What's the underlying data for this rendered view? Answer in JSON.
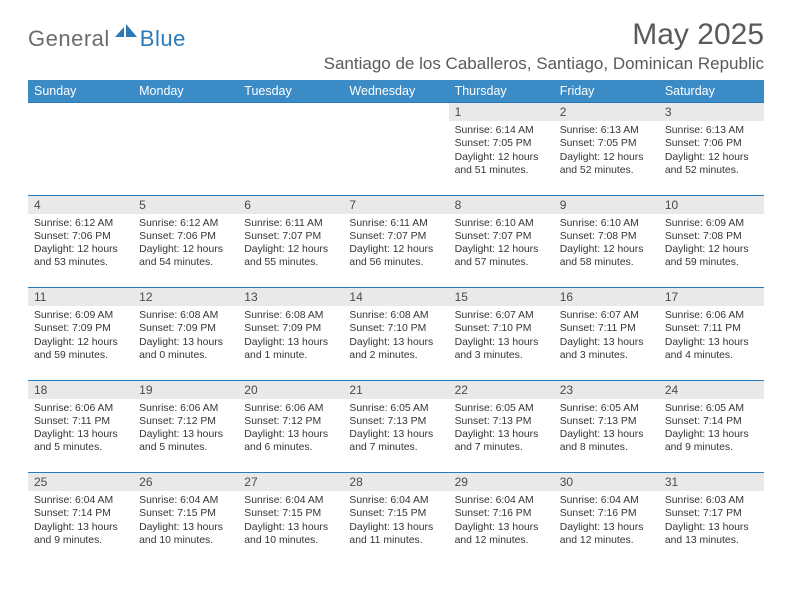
{
  "brand": {
    "part1": "General",
    "part2": "Blue"
  },
  "title": "May 2025",
  "location": "Santiago de los Caballeros, Santiago, Dominican Republic",
  "colors": {
    "header_bg": "#3b8bc7",
    "header_border": "#2a7ab9",
    "daynum_bg": "#e9e9e9",
    "text": "#353535",
    "title_text": "#5a5a5a"
  },
  "weekdays": [
    "Sunday",
    "Monday",
    "Tuesday",
    "Wednesday",
    "Thursday",
    "Friday",
    "Saturday"
  ],
  "weeks": [
    {
      "nums": [
        "",
        "",
        "",
        "",
        "1",
        "2",
        "3"
      ],
      "cells": [
        null,
        null,
        null,
        null,
        {
          "sunrise": "Sunrise: 6:14 AM",
          "sunset": "Sunset: 7:05 PM",
          "day1": "Daylight: 12 hours",
          "day2": "and 51 minutes."
        },
        {
          "sunrise": "Sunrise: 6:13 AM",
          "sunset": "Sunset: 7:05 PM",
          "day1": "Daylight: 12 hours",
          "day2": "and 52 minutes."
        },
        {
          "sunrise": "Sunrise: 6:13 AM",
          "sunset": "Sunset: 7:06 PM",
          "day1": "Daylight: 12 hours",
          "day2": "and 52 minutes."
        }
      ]
    },
    {
      "nums": [
        "4",
        "5",
        "6",
        "7",
        "8",
        "9",
        "10"
      ],
      "cells": [
        {
          "sunrise": "Sunrise: 6:12 AM",
          "sunset": "Sunset: 7:06 PM",
          "day1": "Daylight: 12 hours",
          "day2": "and 53 minutes."
        },
        {
          "sunrise": "Sunrise: 6:12 AM",
          "sunset": "Sunset: 7:06 PM",
          "day1": "Daylight: 12 hours",
          "day2": "and 54 minutes."
        },
        {
          "sunrise": "Sunrise: 6:11 AM",
          "sunset": "Sunset: 7:07 PM",
          "day1": "Daylight: 12 hours",
          "day2": "and 55 minutes."
        },
        {
          "sunrise": "Sunrise: 6:11 AM",
          "sunset": "Sunset: 7:07 PM",
          "day1": "Daylight: 12 hours",
          "day2": "and 56 minutes."
        },
        {
          "sunrise": "Sunrise: 6:10 AM",
          "sunset": "Sunset: 7:07 PM",
          "day1": "Daylight: 12 hours",
          "day2": "and 57 minutes."
        },
        {
          "sunrise": "Sunrise: 6:10 AM",
          "sunset": "Sunset: 7:08 PM",
          "day1": "Daylight: 12 hours",
          "day2": "and 58 minutes."
        },
        {
          "sunrise": "Sunrise: 6:09 AM",
          "sunset": "Sunset: 7:08 PM",
          "day1": "Daylight: 12 hours",
          "day2": "and 59 minutes."
        }
      ]
    },
    {
      "nums": [
        "11",
        "12",
        "13",
        "14",
        "15",
        "16",
        "17"
      ],
      "cells": [
        {
          "sunrise": "Sunrise: 6:09 AM",
          "sunset": "Sunset: 7:09 PM",
          "day1": "Daylight: 12 hours",
          "day2": "and 59 minutes."
        },
        {
          "sunrise": "Sunrise: 6:08 AM",
          "sunset": "Sunset: 7:09 PM",
          "day1": "Daylight: 13 hours",
          "day2": "and 0 minutes."
        },
        {
          "sunrise": "Sunrise: 6:08 AM",
          "sunset": "Sunset: 7:09 PM",
          "day1": "Daylight: 13 hours",
          "day2": "and 1 minute."
        },
        {
          "sunrise": "Sunrise: 6:08 AM",
          "sunset": "Sunset: 7:10 PM",
          "day1": "Daylight: 13 hours",
          "day2": "and 2 minutes."
        },
        {
          "sunrise": "Sunrise: 6:07 AM",
          "sunset": "Sunset: 7:10 PM",
          "day1": "Daylight: 13 hours",
          "day2": "and 3 minutes."
        },
        {
          "sunrise": "Sunrise: 6:07 AM",
          "sunset": "Sunset: 7:11 PM",
          "day1": "Daylight: 13 hours",
          "day2": "and 3 minutes."
        },
        {
          "sunrise": "Sunrise: 6:06 AM",
          "sunset": "Sunset: 7:11 PM",
          "day1": "Daylight: 13 hours",
          "day2": "and 4 minutes."
        }
      ]
    },
    {
      "nums": [
        "18",
        "19",
        "20",
        "21",
        "22",
        "23",
        "24"
      ],
      "cells": [
        {
          "sunrise": "Sunrise: 6:06 AM",
          "sunset": "Sunset: 7:11 PM",
          "day1": "Daylight: 13 hours",
          "day2": "and 5 minutes."
        },
        {
          "sunrise": "Sunrise: 6:06 AM",
          "sunset": "Sunset: 7:12 PM",
          "day1": "Daylight: 13 hours",
          "day2": "and 5 minutes."
        },
        {
          "sunrise": "Sunrise: 6:06 AM",
          "sunset": "Sunset: 7:12 PM",
          "day1": "Daylight: 13 hours",
          "day2": "and 6 minutes."
        },
        {
          "sunrise": "Sunrise: 6:05 AM",
          "sunset": "Sunset: 7:13 PM",
          "day1": "Daylight: 13 hours",
          "day2": "and 7 minutes."
        },
        {
          "sunrise": "Sunrise: 6:05 AM",
          "sunset": "Sunset: 7:13 PM",
          "day1": "Daylight: 13 hours",
          "day2": "and 7 minutes."
        },
        {
          "sunrise": "Sunrise: 6:05 AM",
          "sunset": "Sunset: 7:13 PM",
          "day1": "Daylight: 13 hours",
          "day2": "and 8 minutes."
        },
        {
          "sunrise": "Sunrise: 6:05 AM",
          "sunset": "Sunset: 7:14 PM",
          "day1": "Daylight: 13 hours",
          "day2": "and 9 minutes."
        }
      ]
    },
    {
      "nums": [
        "25",
        "26",
        "27",
        "28",
        "29",
        "30",
        "31"
      ],
      "cells": [
        {
          "sunrise": "Sunrise: 6:04 AM",
          "sunset": "Sunset: 7:14 PM",
          "day1": "Daylight: 13 hours",
          "day2": "and 9 minutes."
        },
        {
          "sunrise": "Sunrise: 6:04 AM",
          "sunset": "Sunset: 7:15 PM",
          "day1": "Daylight: 13 hours",
          "day2": "and 10 minutes."
        },
        {
          "sunrise": "Sunrise: 6:04 AM",
          "sunset": "Sunset: 7:15 PM",
          "day1": "Daylight: 13 hours",
          "day2": "and 10 minutes."
        },
        {
          "sunrise": "Sunrise: 6:04 AM",
          "sunset": "Sunset: 7:15 PM",
          "day1": "Daylight: 13 hours",
          "day2": "and 11 minutes."
        },
        {
          "sunrise": "Sunrise: 6:04 AM",
          "sunset": "Sunset: 7:16 PM",
          "day1": "Daylight: 13 hours",
          "day2": "and 12 minutes."
        },
        {
          "sunrise": "Sunrise: 6:04 AM",
          "sunset": "Sunset: 7:16 PM",
          "day1": "Daylight: 13 hours",
          "day2": "and 12 minutes."
        },
        {
          "sunrise": "Sunrise: 6:03 AM",
          "sunset": "Sunset: 7:17 PM",
          "day1": "Daylight: 13 hours",
          "day2": "and 13 minutes."
        }
      ]
    }
  ]
}
